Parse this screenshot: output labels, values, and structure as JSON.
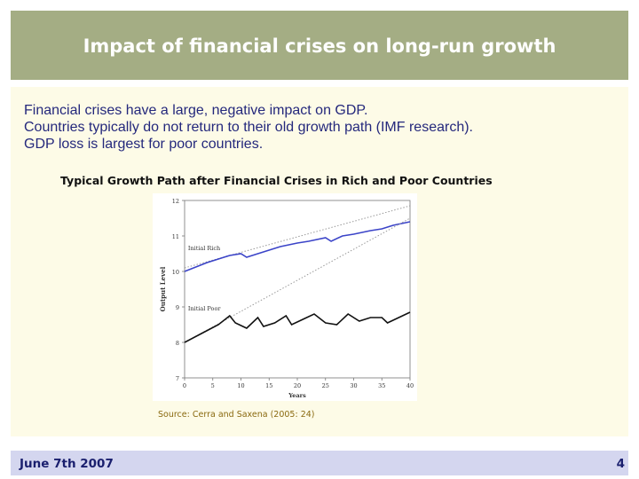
{
  "slide": {
    "title": "Impact of financial crises on long-run growth",
    "bullets": [
      "Financial crises have a large, negative impact on GDP.",
      "Countries typically do not return to their old growth path (IMF research).",
      "GDP loss is largest for poor countries."
    ],
    "source": "Source: Cerra and Saxena (2005: 24)"
  },
  "footer": {
    "date": "June 7th 2007",
    "page": "4"
  },
  "colors": {
    "title_bar": "#a4ad84",
    "content_bg": "#fdfbe7",
    "footer_bg": "#d4d6ef",
    "rich_line": "#3b44c8",
    "poor_line": "#111111",
    "trend_line": "#999999"
  },
  "chart_data": {
    "type": "line",
    "title": "Typical Growth Path after Financial Crises in Rich and Poor Countries",
    "xlabel": "Years",
    "ylabel": "Output Level",
    "xlim": [
      0,
      40
    ],
    "ylim": [
      7,
      12
    ],
    "x_ticks": [
      0,
      5,
      10,
      15,
      20,
      25,
      30,
      35,
      40
    ],
    "y_ticks": [
      7,
      8,
      9,
      10,
      11,
      12
    ],
    "annotations": [
      {
        "text": "Initial Rich",
        "x": 0.3,
        "y": 10.6
      },
      {
        "text": "Initial Poor",
        "x": 0.3,
        "y": 8.9
      }
    ],
    "series": [
      {
        "name": "Rich trend",
        "style": "dotted",
        "x": [
          0,
          40
        ],
        "y": [
          10.1,
          11.85
        ]
      },
      {
        "name": "Rich actual",
        "style": "solid",
        "x": [
          0,
          4,
          8,
          10,
          11,
          13,
          17,
          20,
          22,
          25,
          26,
          28,
          30,
          33,
          35,
          37,
          40
        ],
        "y": [
          10.0,
          10.25,
          10.45,
          10.5,
          10.4,
          10.5,
          10.7,
          10.8,
          10.85,
          10.95,
          10.85,
          11.0,
          11.05,
          11.15,
          11.2,
          11.3,
          11.4
        ]
      },
      {
        "name": "Poor trend",
        "style": "dotted",
        "x": [
          0,
          40
        ],
        "y": [
          8.0,
          11.5
        ]
      },
      {
        "name": "Poor actual",
        "style": "solid",
        "x": [
          0,
          3,
          6,
          8,
          9,
          11,
          13,
          14,
          16,
          18,
          19,
          21,
          23,
          25,
          27,
          29,
          31,
          33,
          35,
          36,
          38,
          40
        ],
        "y": [
          8.0,
          8.25,
          8.5,
          8.75,
          8.55,
          8.4,
          8.7,
          8.45,
          8.55,
          8.75,
          8.5,
          8.65,
          8.8,
          8.55,
          8.5,
          8.8,
          8.6,
          8.7,
          8.7,
          8.55,
          8.7,
          8.85
        ]
      }
    ]
  }
}
